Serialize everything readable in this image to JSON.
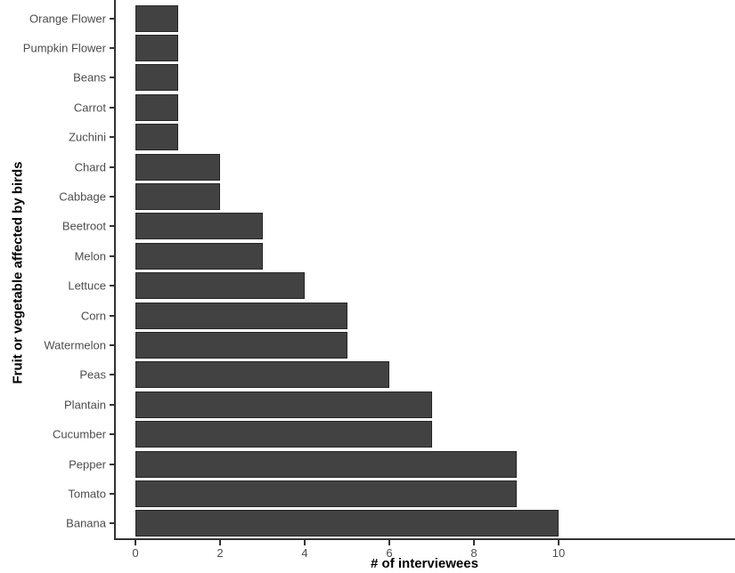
{
  "chart_data": {
    "type": "bar",
    "orientation": "horizontal",
    "title": "",
    "xlabel": "# of interviewees",
    "ylabel": "Fruit or vegetable affected by birds",
    "categories": [
      "Orange Flower",
      "Pumpkin Flower",
      "Beans",
      "Carrot",
      "Zuchini",
      "Chard",
      "Cabbage",
      "Beetroot",
      "Melon",
      "Lettuce",
      "Corn",
      "Watermelon",
      "Peas",
      "Plantain",
      "Cucumber",
      "Pepper",
      "Tomato",
      "Banana"
    ],
    "values": [
      1,
      1,
      1,
      1,
      1,
      2,
      2,
      3,
      3,
      4,
      5,
      5,
      6,
      7,
      7,
      9,
      9,
      10
    ],
    "x_ticks": [
      0,
      2,
      4,
      6,
      8,
      10
    ],
    "xlim": [
      0,
      10
    ],
    "grid": false,
    "legend": false,
    "bar_color": "#424242",
    "bar_border_color": "#272727",
    "axis_line_color": "#333333",
    "tick_label_color": "#4d4d4d",
    "title_color": "#000000"
  }
}
